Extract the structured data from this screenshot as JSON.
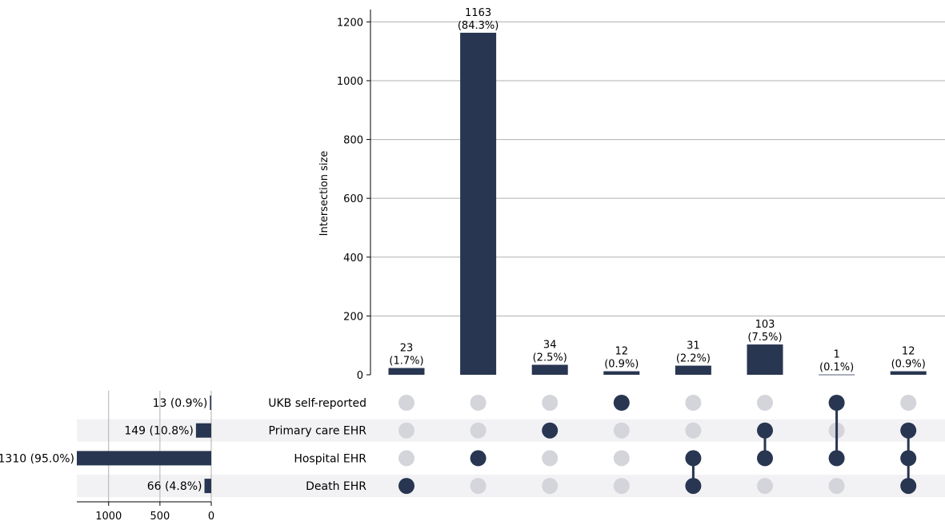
{
  "chart_data": {
    "type": "bar",
    "subtype": "upset",
    "colors": {
      "bar": "#283651",
      "dot_active": "#283651",
      "dot_inactive": "#d3d5da",
      "stripe": "#f2f2f4",
      "grid": "#b0b0b0"
    },
    "intersections": {
      "ylabel": "Intersection size",
      "ylim": [
        0,
        1220
      ],
      "yticks": [
        "0",
        "200",
        "400",
        "600",
        "800",
        "1000",
        "1200"
      ],
      "ytick_values": [
        0,
        200,
        400,
        600,
        800,
        1000,
        1200
      ],
      "grid": true,
      "bars": [
        {
          "value": 23,
          "count_label": "23",
          "pct_label": "(1.7%)",
          "members": [
            3
          ]
        },
        {
          "value": 1163,
          "count_label": "1163",
          "pct_label": "(84.3%)",
          "members": [
            2
          ]
        },
        {
          "value": 34,
          "count_label": "34",
          "pct_label": "(2.5%)",
          "members": [
            1
          ]
        },
        {
          "value": 12,
          "count_label": "12",
          "pct_label": "(0.9%)",
          "members": [
            0
          ]
        },
        {
          "value": 31,
          "count_label": "31",
          "pct_label": "(2.2%)",
          "members": [
            2,
            3
          ]
        },
        {
          "value": 103,
          "count_label": "103",
          "pct_label": "(7.5%)",
          "members": [
            1,
            2
          ]
        },
        {
          "value": 1,
          "count_label": "1",
          "pct_label": "(0.1%)",
          "members": [
            0,
            2
          ]
        },
        {
          "value": 12,
          "count_label": "12",
          "pct_label": "(0.9%)",
          "members": [
            1,
            2,
            3
          ]
        }
      ]
    },
    "sets": [
      {
        "name": "UKB self-reported",
        "value": 13,
        "label": "13 (0.9%)"
      },
      {
        "name": "Primary care EHR",
        "value": 149,
        "label": "149 (10.8%)"
      },
      {
        "name": "Hospital EHR",
        "value": 1310,
        "label": "1310 (95.0%)"
      },
      {
        "name": "Death EHR",
        "value": 66,
        "label": "66 (4.8%)"
      }
    ],
    "set_size_axis": {
      "xlim": [
        1310,
        0
      ],
      "xticks": [
        "1000",
        "500",
        "0"
      ],
      "xtick_values": [
        1000,
        500,
        0
      ],
      "grid": true
    }
  }
}
